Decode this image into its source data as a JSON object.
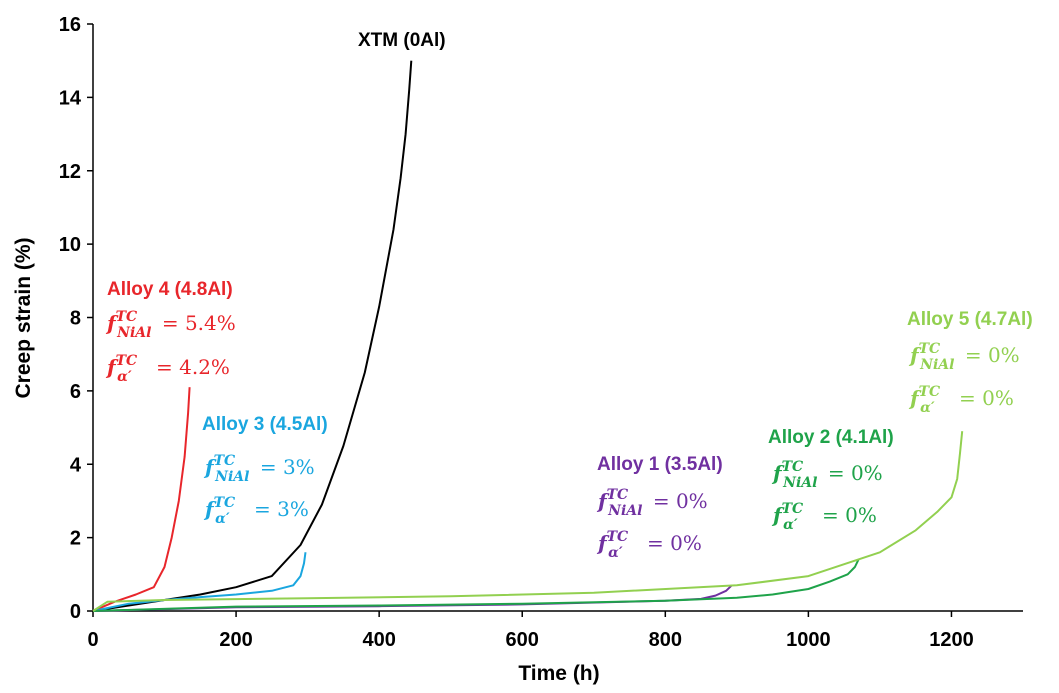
{
  "chart_data": {
    "type": "line",
    "title": "",
    "xlabel": "Time (h)",
    "ylabel": "Creep strain (%)",
    "xlim": [
      0,
      1300
    ],
    "ylim": [
      0,
      16
    ],
    "x_ticks": [
      "0",
      "200",
      "400",
      "600",
      "800",
      "1000",
      "1200"
    ],
    "y_ticks": [
      "0",
      "2",
      "4",
      "6",
      "8",
      "10",
      "12",
      "14",
      "16"
    ],
    "grid": false,
    "series": [
      {
        "name": "XTM (0Al)",
        "color": "#000000",
        "x": [
          0,
          50,
          100,
          150,
          200,
          250,
          290,
          320,
          350,
          380,
          400,
          420,
          430,
          437,
          442,
          445
        ],
        "y": [
          0,
          0.15,
          0.3,
          0.45,
          0.65,
          0.95,
          1.8,
          2.9,
          4.5,
          6.5,
          8.3,
          10.4,
          11.8,
          13.0,
          14.2,
          15.0
        ]
      },
      {
        "name": "Alloy 4 (4.8Al)",
        "color": "#e8262b",
        "annotations": [
          "5.4%",
          "4.2%"
        ],
        "x": [
          0,
          30,
          60,
          85,
          100,
          110,
          120,
          128,
          133,
          135
        ],
        "y": [
          0,
          0.25,
          0.45,
          0.65,
          1.2,
          2.0,
          3.0,
          4.2,
          5.4,
          6.1
        ]
      },
      {
        "name": "Alloy 3 (4.5Al)",
        "color": "#1aa6df",
        "annotations": [
          "3%",
          "3%"
        ],
        "x": [
          0,
          50,
          100,
          150,
          200,
          250,
          280,
          290,
          295,
          297
        ],
        "y": [
          0,
          0.2,
          0.3,
          0.38,
          0.45,
          0.55,
          0.7,
          0.95,
          1.3,
          1.6
        ]
      },
      {
        "name": "Alloy 1 (3.5Al)",
        "color": "#7030a0",
        "annotations": [
          "0%",
          "0%"
        ],
        "x": [
          0,
          200,
          400,
          600,
          800,
          850,
          870,
          885,
          893
        ],
        "y": [
          0,
          0.1,
          0.13,
          0.18,
          0.28,
          0.33,
          0.42,
          0.55,
          0.7
        ]
      },
      {
        "name": "Alloy 2 (4.1Al)",
        "color": "#1fa34a",
        "annotations": [
          "0%",
          "0%"
        ],
        "x": [
          0,
          200,
          400,
          600,
          800,
          900,
          950,
          1000,
          1030,
          1055,
          1065,
          1070
        ],
        "y": [
          0,
          0.12,
          0.15,
          0.2,
          0.28,
          0.36,
          0.45,
          0.6,
          0.8,
          1.0,
          1.2,
          1.4
        ]
      },
      {
        "name": "Alloy 5 (4.7Al)",
        "color": "#92d050",
        "annotations": [
          "0%",
          "0%"
        ],
        "x": [
          0,
          20,
          100,
          300,
          500,
          700,
          900,
          1000,
          1100,
          1150,
          1180,
          1200,
          1208,
          1212,
          1215
        ],
        "y": [
          0,
          0.25,
          0.3,
          0.35,
          0.4,
          0.5,
          0.7,
          0.95,
          1.6,
          2.2,
          2.7,
          3.1,
          3.6,
          4.3,
          4.9
        ]
      }
    ]
  }
}
